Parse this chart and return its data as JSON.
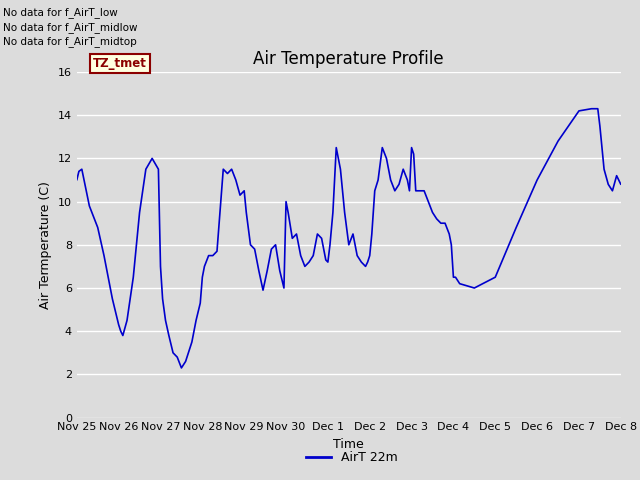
{
  "title": "Air Temperature Profile",
  "xlabel": "Time",
  "ylabel": "Air Termperature (C)",
  "legend_label": "AirT 22m",
  "no_data_texts": [
    "No data for f_AirT_low",
    "No data for f_AirT_midlow",
    "No data for f_AirT_midtop"
  ],
  "tz_tmet_label": "TZ_tmet",
  "ylim": [
    0,
    16
  ],
  "yticks": [
    0,
    2,
    4,
    6,
    8,
    10,
    12,
    14,
    16
  ],
  "line_color": "#0000cc",
  "bg_color": "#dcdcdc",
  "x_tick_labels": [
    "Nov 25",
    "Nov 26",
    "Nov 27",
    "Nov 28",
    "Nov 29",
    "Nov 30",
    "Dec 1",
    "Dec 2",
    "Dec 3",
    "Dec 4",
    "Dec 5",
    "Dec 6",
    "Dec 7",
    "Dec 8"
  ],
  "x_tick_positions": [
    0,
    1,
    2,
    3,
    4,
    5,
    6,
    7,
    8,
    9,
    10,
    11,
    12,
    13
  ],
  "key_x": [
    0.0,
    0.05,
    0.12,
    0.3,
    0.5,
    0.65,
    0.75,
    0.85,
    1.0,
    1.05,
    1.1,
    1.2,
    1.35,
    1.5,
    1.65,
    1.8,
    1.95,
    2.0,
    2.05,
    2.12,
    2.2,
    2.3,
    2.4,
    2.5,
    2.6,
    2.75,
    2.85,
    2.95,
    3.0,
    3.05,
    3.15,
    3.25,
    3.35,
    3.5,
    3.6,
    3.7,
    3.8,
    3.9,
    4.0,
    4.05,
    4.15,
    4.25,
    4.35,
    4.45,
    4.55,
    4.65,
    4.75,
    4.85,
    4.95,
    5.0,
    5.05,
    5.15,
    5.25,
    5.35,
    5.45,
    5.55,
    5.65,
    5.75,
    5.85,
    5.95,
    6.0,
    6.05,
    6.12,
    6.2,
    6.3,
    6.4,
    6.5,
    6.6,
    6.7,
    6.8,
    6.9,
    6.95,
    7.0,
    7.05,
    7.12,
    7.2,
    7.3,
    7.4,
    7.5,
    7.6,
    7.7,
    7.8,
    7.9,
    7.95,
    8.0,
    8.05,
    8.1,
    8.2,
    8.3,
    8.4,
    8.5,
    8.6,
    8.7,
    8.8,
    8.9,
    8.95,
    9.0,
    9.05,
    9.15,
    9.5,
    10.0,
    10.5,
    11.0,
    11.5,
    12.0,
    12.3,
    12.45,
    12.5,
    12.55,
    12.6,
    12.7,
    12.8,
    12.9,
    13.0
  ],
  "key_y": [
    11.0,
    11.4,
    11.5,
    9.8,
    8.8,
    7.5,
    6.5,
    5.5,
    4.3,
    4.0,
    3.8,
    4.5,
    6.5,
    9.5,
    11.5,
    12.0,
    11.5,
    7.0,
    5.5,
    4.5,
    3.8,
    3.0,
    2.8,
    2.3,
    2.6,
    3.5,
    4.5,
    5.3,
    6.5,
    7.0,
    7.5,
    7.5,
    7.7,
    11.5,
    11.3,
    11.5,
    11.0,
    10.3,
    10.5,
    9.5,
    8.0,
    7.8,
    6.8,
    5.9,
    6.8,
    7.8,
    8.0,
    6.8,
    6.0,
    10.0,
    9.5,
    8.3,
    8.5,
    7.5,
    7.0,
    7.2,
    7.5,
    8.5,
    8.3,
    7.3,
    7.2,
    8.0,
    9.5,
    12.5,
    11.5,
    9.5,
    8.0,
    8.5,
    7.5,
    7.2,
    7.0,
    7.2,
    7.5,
    8.5,
    10.5,
    11.0,
    12.5,
    12.0,
    11.0,
    10.5,
    10.8,
    11.5,
    11.0,
    10.5,
    12.5,
    12.2,
    10.5,
    10.5,
    10.5,
    10.0,
    9.5,
    9.2,
    9.0,
    9.0,
    8.5,
    8.0,
    6.5,
    6.5,
    6.2,
    6.0,
    6.5,
    8.8,
    11.0,
    12.8,
    14.2,
    14.3,
    14.3,
    13.5,
    12.5,
    11.5,
    10.8,
    10.5,
    11.2,
    10.8
  ]
}
